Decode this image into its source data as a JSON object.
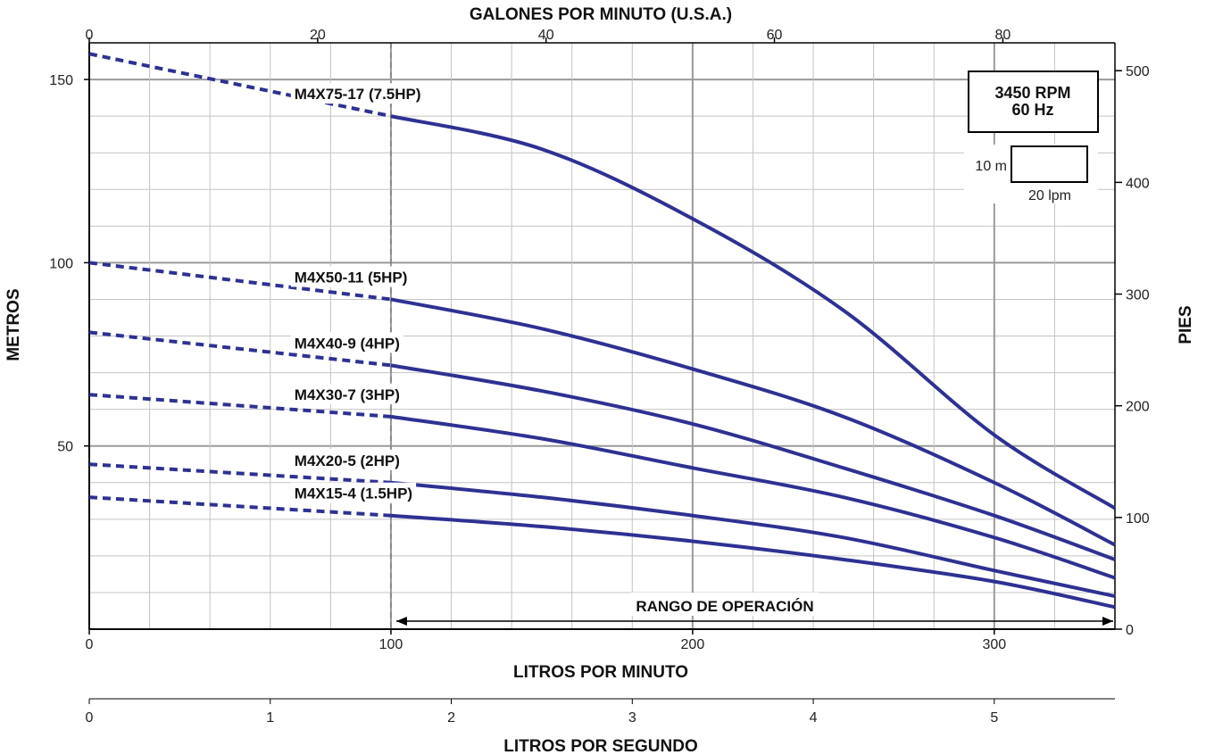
{
  "chart_data": {
    "type": "line",
    "title": "GALONES POR MINUTO (U.S.A.)",
    "xlabel": "LITROS POR MINUTO",
    "xlabel_secondary": "LITROS POR SEGUNDO",
    "ylabel": "METROS",
    "ylabel_right": "PIES",
    "xlim": [
      0,
      340
    ],
    "ylim": [
      0,
      160
    ],
    "x_ticks": [
      "0",
      "100",
      "200",
      "300"
    ],
    "x_tick_values": [
      0,
      100,
      200,
      300
    ],
    "top_ticks": [
      "0",
      "20",
      "40",
      "60",
      "80"
    ],
    "top_tick_values": [
      0,
      20,
      40,
      60,
      80
    ],
    "lps_ticks": [
      "0",
      "1",
      "2",
      "3",
      "4",
      "5"
    ],
    "lps_tick_values": [
      0,
      1,
      2,
      3,
      4,
      5
    ],
    "y_ticks": [
      "50",
      "100",
      "150"
    ],
    "y_tick_values": [
      50,
      100,
      150
    ],
    "right_ticks": [
      "0",
      "100",
      "200",
      "300",
      "400",
      "500"
    ],
    "right_tick_values": [
      0,
      100,
      200,
      300,
      400,
      500
    ],
    "grid": true,
    "rpm_label": "3450 RPM",
    "hz_label": "60 Hz",
    "scale_m_label": "10 m",
    "scale_lpm_label": "20 lpm",
    "range_label": "RANGO DE OPERACIÓN",
    "operating_range": [
      100,
      340
    ],
    "line_color": "#2e3192",
    "series": [
      {
        "name": "M4X75-17 (7.5HP)",
        "x": [
          0,
          100,
          150,
          200,
          250,
          300,
          340
        ],
        "y": [
          157,
          140,
          131,
          112,
          87,
          53,
          33
        ]
      },
      {
        "name": "M4X50-11 (5HP)",
        "x": [
          0,
          100,
          150,
          200,
          250,
          300,
          340
        ],
        "y": [
          100,
          90,
          82,
          71,
          58,
          40,
          23
        ]
      },
      {
        "name": "M4X40-9 (4HP)",
        "x": [
          0,
          100,
          150,
          200,
          250,
          300,
          340
        ],
        "y": [
          81,
          72,
          65,
          56,
          44,
          31,
          19
        ]
      },
      {
        "name": "M4X30-7 (3HP)",
        "x": [
          0,
          100,
          150,
          200,
          250,
          300,
          340
        ],
        "y": [
          64,
          58,
          52,
          44,
          36,
          25,
          14
        ]
      },
      {
        "name": "M4X20-5 (2HP)",
        "x": [
          0,
          100,
          150,
          200,
          250,
          300,
          340
        ],
        "y": [
          45,
          40,
          36,
          31,
          25,
          16,
          9
        ]
      },
      {
        "name": "M4X15-4 (1.5HP)",
        "x": [
          0,
          100,
          150,
          200,
          250,
          300,
          340
        ],
        "y": [
          36,
          31,
          28,
          24,
          19,
          13,
          6
        ]
      }
    ]
  }
}
